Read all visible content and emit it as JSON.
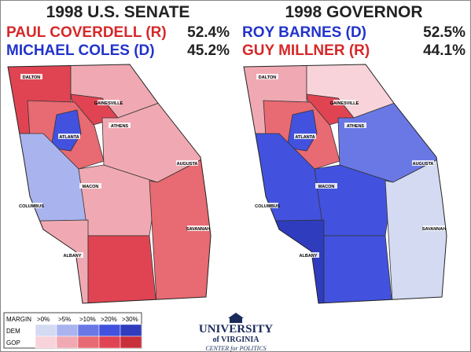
{
  "maps": [
    {
      "title": "1998 U.S. SENATE",
      "candidates": [
        {
          "name": "PAUL COVERDELL (R)",
          "pct": "52.4%"
        },
        {
          "name": "MICHAEL COLES (D)",
          "pct": "45.2%"
        }
      ],
      "cities": [
        "DALTON",
        "GAINESVILLE",
        "ATLANTA",
        "ATHENS",
        "AUGUSTA",
        "MACON",
        "COLUMBUS",
        "SAVANNAH",
        "ALBANY"
      ]
    },
    {
      "title": "1998 GOVERNOR",
      "candidates": [
        {
          "name": "ROY BARNES (D)",
          "pct": "52.5%"
        },
        {
          "name": "GUY MILLNER (R)",
          "pct": "44.1%"
        }
      ],
      "cities": [
        "DALTON",
        "GAINESVILLE",
        "ATLANTA",
        "ATHENS",
        "AUGUSTA",
        "MACON",
        "COLUMBUS",
        "SAVANNAH",
        "ALBANY"
      ]
    }
  ],
  "legend": {
    "title": "MARGIN",
    "levels": [
      ">0%",
      ">5%",
      ">10%",
      ">20%",
      ">30%"
    ],
    "rows": [
      "DEM",
      "GOP"
    ]
  },
  "logo": [
    "UNIVERSITY",
    "of VIRGINIA",
    "CENTER for POLITICS"
  ]
}
